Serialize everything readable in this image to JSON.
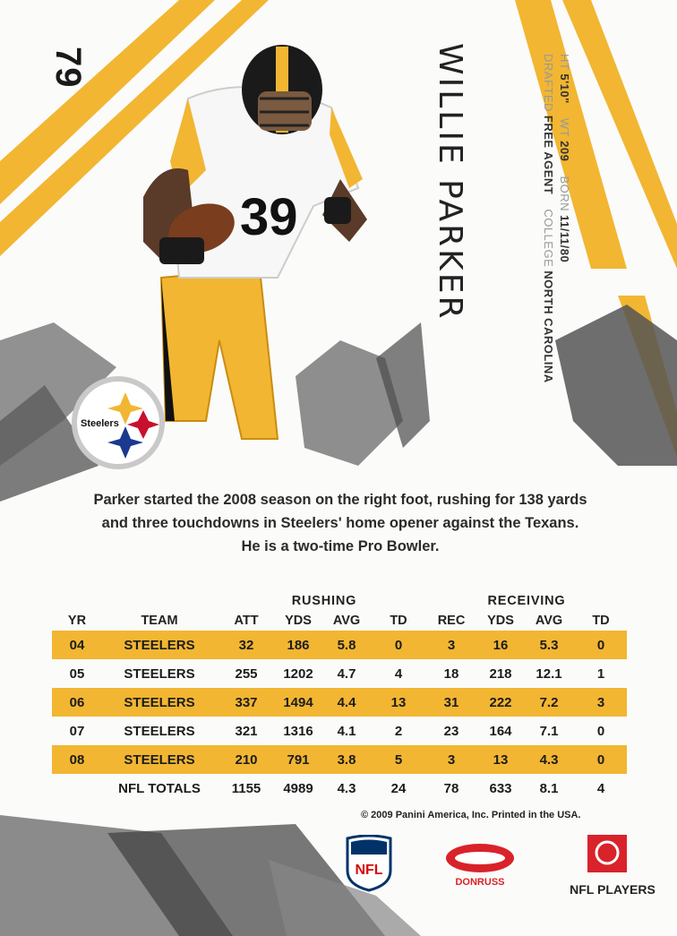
{
  "card": {
    "number": "79",
    "player_name": "WILLIE PARKER",
    "team_logo_text": "Steelers",
    "jersey_number": "39"
  },
  "vitals": {
    "line1": {
      "ht_label": "HT",
      "ht": "5'10\"",
      "wt_label": "WT",
      "wt": "209",
      "born_label": "BORN",
      "born": "11/11/80"
    },
    "line2": {
      "drafted_label": "DRAFTED",
      "drafted": "FREE AGENT",
      "college_label": "COLLEGE",
      "college": "NORTH CAROLINA"
    }
  },
  "bio": {
    "line1": "Parker started the 2008 season on the right foot, rushing for 138 yards",
    "line2": "and three touchdowns in Steelers' home opener against the Texans.",
    "line3": "He is a two-time Pro Bowler."
  },
  "stats": {
    "group_rushing": "RUSHING",
    "group_receiving": "RECEIVING",
    "headers": [
      "YR",
      "TEAM",
      "ATT",
      "YDS",
      "AVG",
      "TD",
      "REC",
      "YDS",
      "AVG",
      "TD"
    ],
    "rows": [
      [
        "04",
        "STEELERS",
        "32",
        "186",
        "5.8",
        "0",
        "3",
        "16",
        "5.3",
        "0"
      ],
      [
        "05",
        "STEELERS",
        "255",
        "1202",
        "4.7",
        "4",
        "18",
        "218",
        "12.1",
        "1"
      ],
      [
        "06",
        "STEELERS",
        "337",
        "1494",
        "4.4",
        "13",
        "31",
        "222",
        "7.2",
        "3"
      ],
      [
        "07",
        "STEELERS",
        "321",
        "1316",
        "4.1",
        "2",
        "23",
        "164",
        "7.1",
        "0"
      ],
      [
        "08",
        "STEELERS",
        "210",
        "791",
        "3.8",
        "5",
        "3",
        "13",
        "4.3",
        "0"
      ]
    ],
    "totals": [
      "",
      "NFL TOTALS",
      "1155",
      "4989",
      "4.3",
      "24",
      "78",
      "633",
      "8.1",
      "4"
    ]
  },
  "footer": {
    "copyright": "© 2009 Panini America, Inc. Printed in the USA.",
    "nfl_logo_text": "NFL",
    "donruss_text": "DONRUSS",
    "nfl_players_text": "NFL PLAYERS"
  },
  "colors": {
    "accent_gold": "#f2b632",
    "steelers_black": "#1a1a1a",
    "highlight_row": "#f2b632"
  },
  "icons": [
    "steelers-logo-icon",
    "nfl-shield-icon",
    "donruss-logo-icon",
    "nfl-players-logo-icon"
  ]
}
